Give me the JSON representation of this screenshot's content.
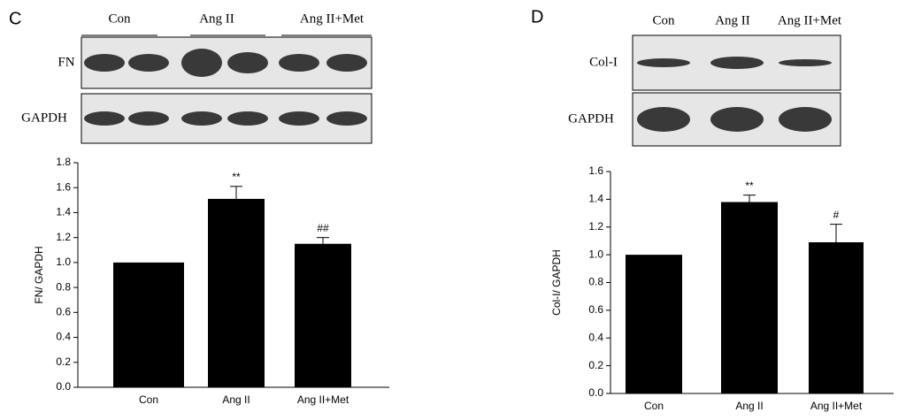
{
  "chart_data": [
    {
      "type": "bar",
      "panel_label": "C",
      "blot_lanes": [
        "Con",
        "Ang II",
        "Ang II+Met"
      ],
      "blot_rows": [
        "FN",
        "GAPDH"
      ],
      "y_label": "FN/ GAPDH",
      "categories": [
        "Con",
        "Ang II",
        "Ang II+Met"
      ],
      "values": [
        1.0,
        1.51,
        1.15
      ],
      "errors": [
        null,
        0.1,
        0.05
      ],
      "value_annotations": [
        null,
        "**",
        "##"
      ],
      "color": "#000000",
      "ylim": [
        0,
        1.8
      ],
      "yticks": [
        {
          "value": 0,
          "label": "0.0"
        },
        0.2,
        0.4,
        0.6,
        0.8,
        {
          "value": 1,
          "label": "1.0"
        },
        1.2,
        1.4,
        1.6,
        1.8
      ]
    },
    {
      "type": "bar",
      "panel_label": "D",
      "blot_lanes": [
        "Con",
        "Ang II",
        "Ang II+Met"
      ],
      "blot_rows": [
        "Col-I",
        "GAPDH"
      ],
      "y_label": "Col-I/ GAPDH",
      "categories": [
        "Con",
        "Ang II",
        "Ang II+Met"
      ],
      "values": [
        1.0,
        1.38,
        1.09
      ],
      "errors": [
        null,
        0.05,
        0.13
      ],
      "value_annotations": [
        null,
        "**",
        "#"
      ],
      "color": "#000000",
      "ylim": [
        0,
        1.6
      ],
      "yticks": [
        {
          "value": 0,
          "label": "0.0"
        },
        0.2,
        0.4,
        0.6,
        0.8,
        {
          "value": 1,
          "label": "1.0"
        },
        1.2,
        1.4,
        1.6
      ]
    }
  ]
}
